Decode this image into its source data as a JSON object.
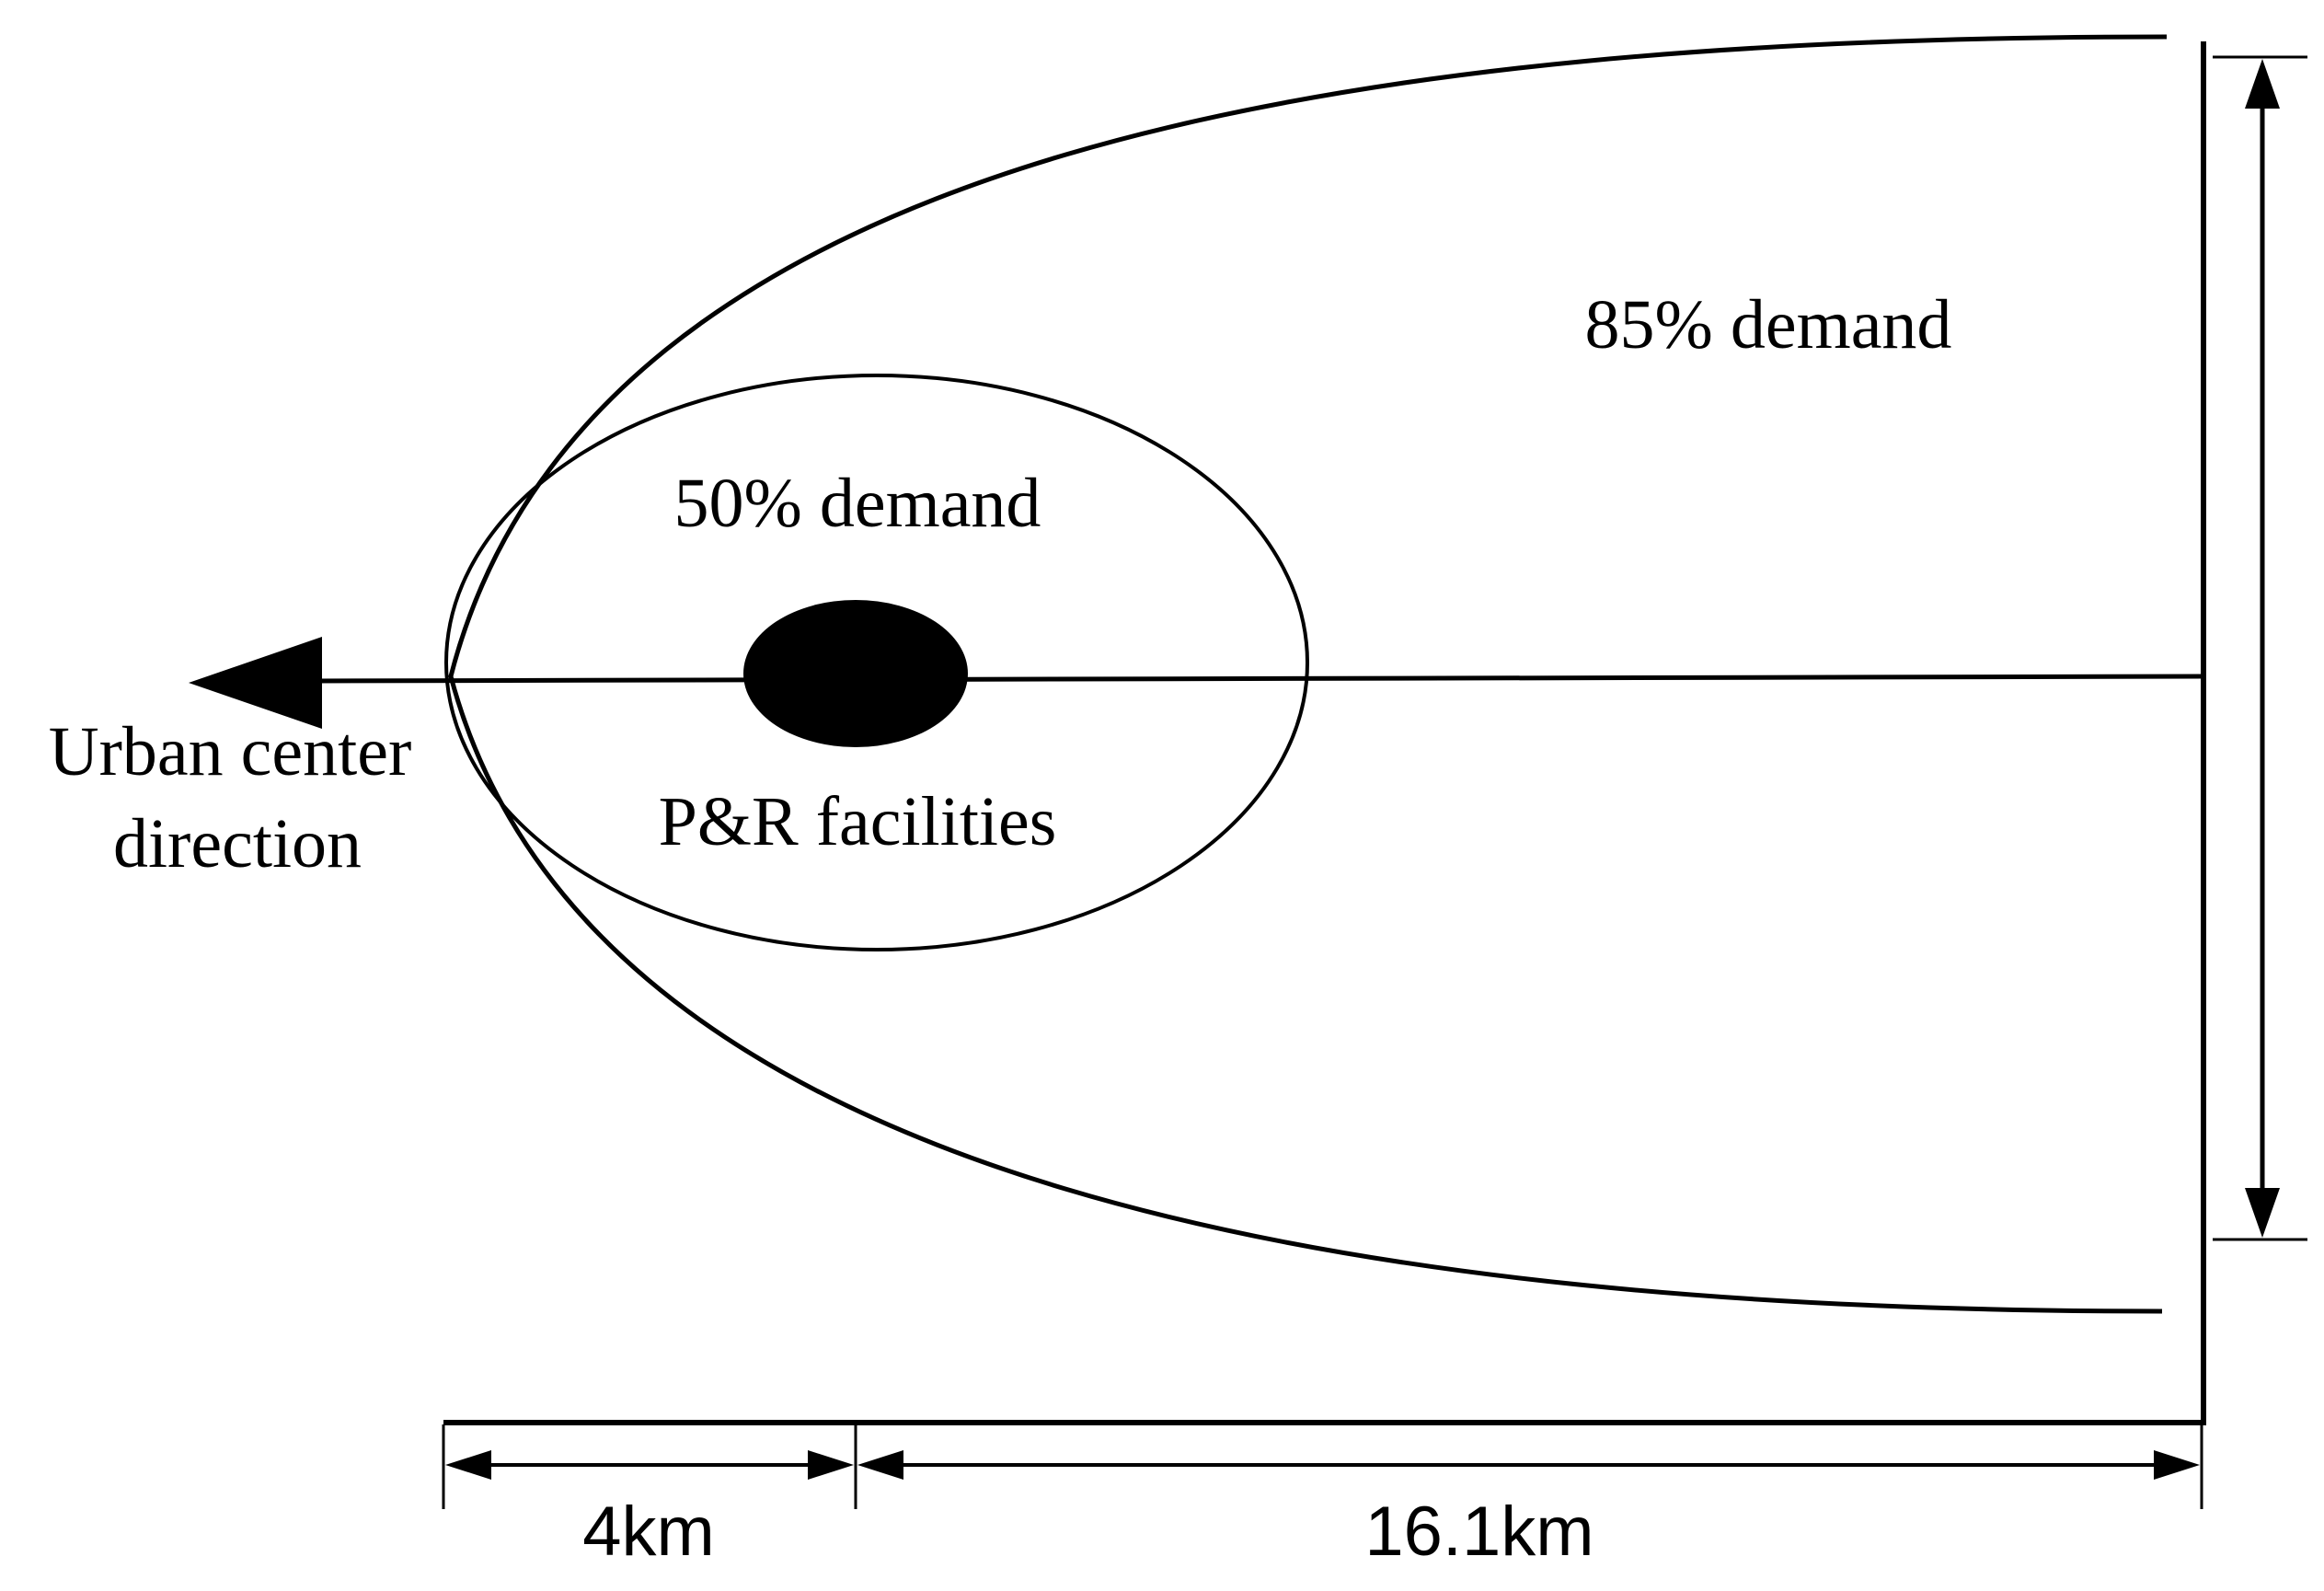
{
  "labels": {
    "outer_zone": "85% demand",
    "inner_zone": "50% demand",
    "facility": "P&R facilities",
    "direction_line1": "Urban center",
    "direction_line2": "direction",
    "dim_short": "4km",
    "dim_long": "16.1km"
  },
  "colors": {
    "stroke": "#000000",
    "facility_fill": "#000000",
    "background": "#ffffff"
  }
}
